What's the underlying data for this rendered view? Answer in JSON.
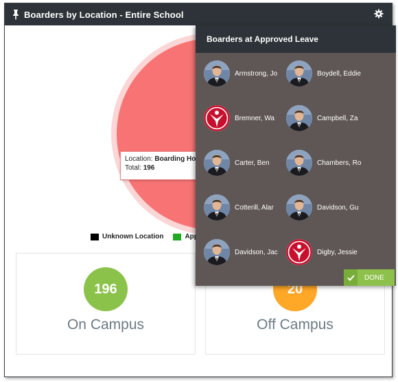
{
  "widget": {
    "title": "Boarders by Location - Entire School",
    "pin_icon": "pin-icon",
    "settings_icon": "gear-icon"
  },
  "chart_data": {
    "type": "pie",
    "slices": [
      {
        "label": "Boarding House",
        "value": 196,
        "color": "#f87474"
      }
    ],
    "legend": [
      {
        "label": "Unknown Location",
        "color": "#000000"
      },
      {
        "label": "App",
        "color": "#1faa1f"
      }
    ],
    "tooltip": {
      "location_prefix": "Location:",
      "location": "Boarding Ho",
      "total_prefix": "Total:",
      "total": "196"
    }
  },
  "cards": [
    {
      "value": "196",
      "label": "On Campus",
      "color": "#8bc34a"
    },
    {
      "value": "20",
      "label": "Off Campus",
      "color": "#ffa726"
    }
  ],
  "leave_panel": {
    "title": "Boarders at Approved Leave",
    "students": [
      {
        "name": "Armstrong, Jo",
        "photo": "portrait"
      },
      {
        "name": "Boydell, Eddie",
        "photo": "portrait"
      },
      {
        "name": "Bremner, Wa",
        "photo": "school-logo"
      },
      {
        "name": "Campbell, Za",
        "photo": "portrait"
      },
      {
        "name": "Carter, Ben",
        "photo": "portrait"
      },
      {
        "name": "Chambers, Ro",
        "photo": "portrait"
      },
      {
        "name": "Cotterill, Alar",
        "photo": "portrait"
      },
      {
        "name": "Davidson, Gu",
        "photo": "portrait"
      },
      {
        "name": "Davidson, Jac",
        "photo": "portrait"
      },
      {
        "name": "Digby, Jessie",
        "photo": "school-logo"
      }
    ],
    "done_label": "DONE",
    "done_icon": "check-icon"
  }
}
